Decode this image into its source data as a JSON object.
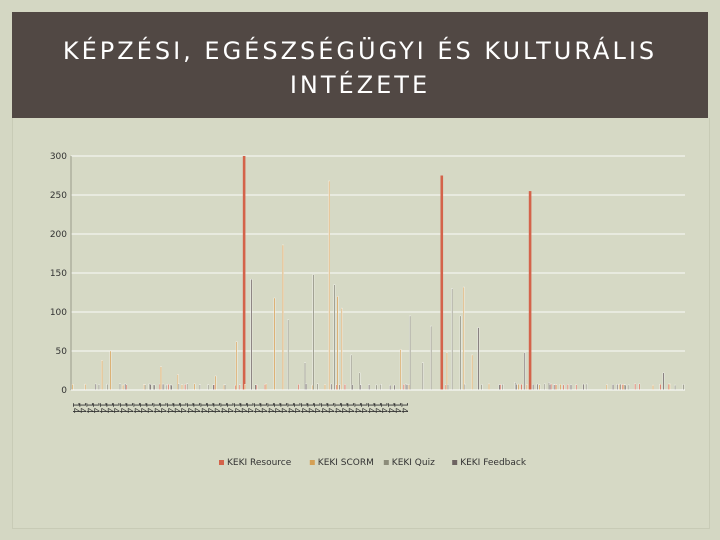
{
  "slide": {
    "title_line1": "KÉPZÉSI, EGÉSZSÉGÜGYI ÉS KULTURÁLIS",
    "title_line2": "INTÉZETE"
  },
  "chart_data": {
    "type": "bar",
    "title": "",
    "xlabel": "",
    "ylabel": "",
    "ylim": [
      0,
      300
    ],
    "yticks": [
      0,
      50,
      100,
      150,
      200,
      250,
      300
    ],
    "grid": true,
    "legend_position": "bottom",
    "x_tick_label_text": "14",
    "colors": {
      "KEKI Resource": "#d4634a",
      "KEKI SCORM": "#d4a055",
      "KEKI Quiz": "#8c8c7a",
      "KEKI Feedback": "#6e6462"
    },
    "series": [
      {
        "name": "KEKI Resource",
        "values": [
          0,
          0,
          0,
          0,
          0,
          0,
          0,
          0,
          0,
          0,
          0,
          0,
          0,
          0,
          0,
          0,
          0,
          0,
          0,
          0,
          0,
          0,
          0,
          0,
          0,
          0,
          0,
          0,
          0,
          0,
          0,
          0,
          0,
          0,
          0,
          0,
          0,
          0,
          0,
          0,
          0,
          0,
          0,
          0,
          0,
          0,
          0,
          0,
          0,
          0,
          0,
          0,
          0,
          0,
          0,
          0,
          0,
          0,
          0,
          0,
          0,
          0,
          0,
          0,
          0,
          0,
          0,
          0,
          0,
          0,
          0,
          0,
          0,
          0,
          0,
          0,
          0,
          0,
          0,
          0,
          0,
          0,
          0,
          0,
          0,
          0,
          0,
          0,
          0,
          0,
          0,
          0,
          0,
          0,
          0,
          0,
          0,
          0,
          0,
          0,
          0,
          0,
          0,
          0,
          0,
          0,
          0,
          0,
          0,
          0,
          0,
          0,
          0,
          0,
          0,
          0,
          0,
          0,
          0,
          0,
          0,
          0,
          0,
          0,
          0,
          0,
          0,
          0,
          0,
          0,
          0,
          0,
          0,
          0,
          0,
          0,
          0,
          0,
          0,
          0,
          0,
          0,
          0,
          0,
          0,
          0
        ]
      },
      {
        "name": "KEKI SCORM",
        "values": [
          0,
          0,
          0,
          0,
          0,
          0,
          0,
          0,
          0,
          0,
          0,
          0,
          0,
          0,
          0,
          0,
          0,
          0,
          0,
          0,
          0,
          0,
          0,
          0,
          0,
          0,
          0,
          0,
          0,
          0,
          0,
          0,
          0,
          0,
          0,
          0,
          0,
          0,
          0,
          0,
          0,
          0,
          0,
          0,
          0,
          0,
          0,
          0,
          0,
          0,
          0,
          0,
          0,
          0,
          0,
          0,
          0,
          0,
          0,
          0,
          0,
          0,
          0,
          0,
          0,
          0,
          0,
          0,
          0,
          0,
          0,
          0,
          0,
          0,
          0,
          0,
          0,
          0,
          0,
          0,
          0,
          0,
          0,
          0,
          0,
          0,
          0,
          0,
          0,
          0,
          0,
          0,
          0,
          0,
          0,
          0,
          0,
          0,
          0,
          0,
          0,
          0,
          0,
          0,
          0,
          0,
          0,
          0,
          0,
          0,
          0,
          0,
          0,
          0,
          0,
          0,
          0,
          0,
          0,
          0,
          0,
          0,
          0,
          0,
          0,
          0,
          0,
          0,
          0,
          0,
          0,
          0,
          0,
          0,
          0,
          0,
          0,
          0,
          0,
          0,
          0,
          0,
          0,
          0,
          0,
          0
        ]
      },
      {
        "name": "KEKI Quiz",
        "values": [
          0,
          0,
          0,
          0,
          0,
          0,
          0,
          0,
          0,
          0,
          0,
          0,
          0,
          0,
          0,
          0,
          0,
          0,
          0,
          0,
          0,
          0,
          0,
          0,
          0,
          0,
          0,
          0,
          0,
          0,
          0,
          0,
          0,
          0,
          0,
          0,
          0,
          0,
          0,
          0,
          0,
          0,
          0,
          0,
          0,
          0,
          0,
          0,
          0,
          0,
          0,
          0,
          0,
          0,
          0,
          0,
          0,
          0,
          0,
          0,
          0,
          0,
          0,
          0,
          0,
          0,
          0,
          0,
          0,
          0,
          0,
          0,
          0,
          0,
          0,
          0,
          0,
          0,
          0,
          0,
          0,
          0,
          0,
          0,
          0,
          0,
          0,
          0,
          0,
          0,
          0,
          0,
          0,
          0,
          0,
          0,
          0,
          0,
          0,
          0,
          0,
          0,
          0,
          0,
          0,
          0,
          0,
          0,
          0,
          0,
          0,
          0,
          0,
          0,
          0,
          0,
          0,
          0,
          0,
          0,
          0,
          0,
          0,
          0,
          0,
          0,
          0,
          0,
          0,
          0,
          0,
          0,
          0,
          0,
          0,
          0,
          0,
          0,
          0,
          0,
          0,
          0,
          0,
          0,
          0,
          0
        ]
      },
      {
        "name": "KEKI Feedback",
        "values": [
          0,
          0,
          0,
          0,
          0,
          0,
          0,
          0,
          0,
          0,
          0,
          0,
          0,
          0,
          0,
          0,
          0,
          0,
          0,
          0,
          0,
          0,
          0,
          0,
          0,
          0,
          0,
          0,
          0,
          0,
          0,
          0,
          0,
          0,
          0,
          0,
          0,
          0,
          0,
          0,
          0,
          0,
          0,
          0,
          0,
          0,
          0,
          0,
          0,
          0,
          0,
          0,
          0,
          0,
          0,
          0,
          0,
          0,
          0,
          0,
          0,
          0,
          0,
          0,
          0,
          0,
          0,
          0,
          0,
          0,
          0,
          0,
          0,
          0,
          0,
          0,
          0,
          0,
          0,
          0,
          0,
          0,
          0,
          0,
          0,
          0,
          0,
          0,
          0,
          0,
          0,
          0,
          0,
          0,
          0,
          0,
          0,
          0,
          0,
          0,
          0,
          0,
          0,
          0,
          0,
          0,
          0,
          0,
          0,
          0,
          0,
          0,
          0,
          0,
          0,
          0,
          0,
          0,
          0,
          0,
          0,
          0,
          0,
          0,
          0,
          0,
          0,
          0,
          0,
          0,
          0,
          0,
          0,
          0,
          0,
          0,
          0,
          0,
          0,
          0,
          0,
          0,
          0,
          0,
          0,
          0
        ]
      }
    ],
    "peaks": [
      {
        "series": "KEKI SCORM",
        "index": 7,
        "value": 38
      },
      {
        "series": "KEKI SCORM",
        "index": 9,
        "value": 50
      },
      {
        "series": "KEKI Quiz",
        "index": 11,
        "value": 8
      },
      {
        "series": "KEKI SCORM",
        "index": 21,
        "value": 30
      },
      {
        "series": "KEKI SCORM",
        "index": 25,
        "value": 20
      },
      {
        "series": "KEKI Quiz",
        "index": 27,
        "value": 8
      },
      {
        "series": "KEKI SCORM",
        "index": 34,
        "value": 18
      },
      {
        "series": "KEKI SCORM",
        "index": 39,
        "value": 62
      },
      {
        "series": "KEKI Resource",
        "index": 41,
        "value": 300
      },
      {
        "series": "KEKI Feedback",
        "index": 42,
        "value": 142
      },
      {
        "series": "KEKI SCORM",
        "index": 48,
        "value": 118
      },
      {
        "series": "KEKI SCORM",
        "index": 50,
        "value": 186
      },
      {
        "series": "KEKI Quiz",
        "index": 51,
        "value": 90
      },
      {
        "series": "KEKI Quiz",
        "index": 55,
        "value": 35
      },
      {
        "series": "KEKI Quiz",
        "index": 57,
        "value": 148
      },
      {
        "series": "KEKI SCORM",
        "index": 61,
        "value": 268
      },
      {
        "series": "KEKI Quiz",
        "index": 62,
        "value": 135
      },
      {
        "series": "KEKI SCORM",
        "index": 63,
        "value": 120
      },
      {
        "series": "KEKI SCORM",
        "index": 64,
        "value": 105
      },
      {
        "series": "KEKI Quiz",
        "index": 66,
        "value": 45
      },
      {
        "series": "KEKI Quiz",
        "index": 68,
        "value": 22
      },
      {
        "series": "KEKI SCORM",
        "index": 78,
        "value": 52
      },
      {
        "series": "KEKI Quiz",
        "index": 80,
        "value": 95
      },
      {
        "series": "KEKI Quiz",
        "index": 83,
        "value": 35
      },
      {
        "series": "KEKI Quiz",
        "index": 85,
        "value": 82
      },
      {
        "series": "KEKI Resource",
        "index": 88,
        "value": 275
      },
      {
        "series": "KEKI SCORM",
        "index": 89,
        "value": 48
      },
      {
        "series": "KEKI Quiz",
        "index": 90,
        "value": 130
      },
      {
        "series": "KEKI Quiz",
        "index": 92,
        "value": 95
      },
      {
        "series": "KEKI SCORM",
        "index": 93,
        "value": 132
      },
      {
        "series": "KEKI SCORM",
        "index": 95,
        "value": 45
      },
      {
        "series": "KEKI Feedback",
        "index": 96,
        "value": 80
      },
      {
        "series": "KEKI Quiz",
        "index": 105,
        "value": 10
      },
      {
        "series": "KEKI Feedback",
        "index": 107,
        "value": 48
      },
      {
        "series": "KEKI Resource",
        "index": 109,
        "value": 255
      },
      {
        "series": "KEKI Quiz",
        "index": 113,
        "value": 10
      },
      {
        "series": "KEKI Feedback",
        "index": 140,
        "value": 22
      }
    ]
  }
}
